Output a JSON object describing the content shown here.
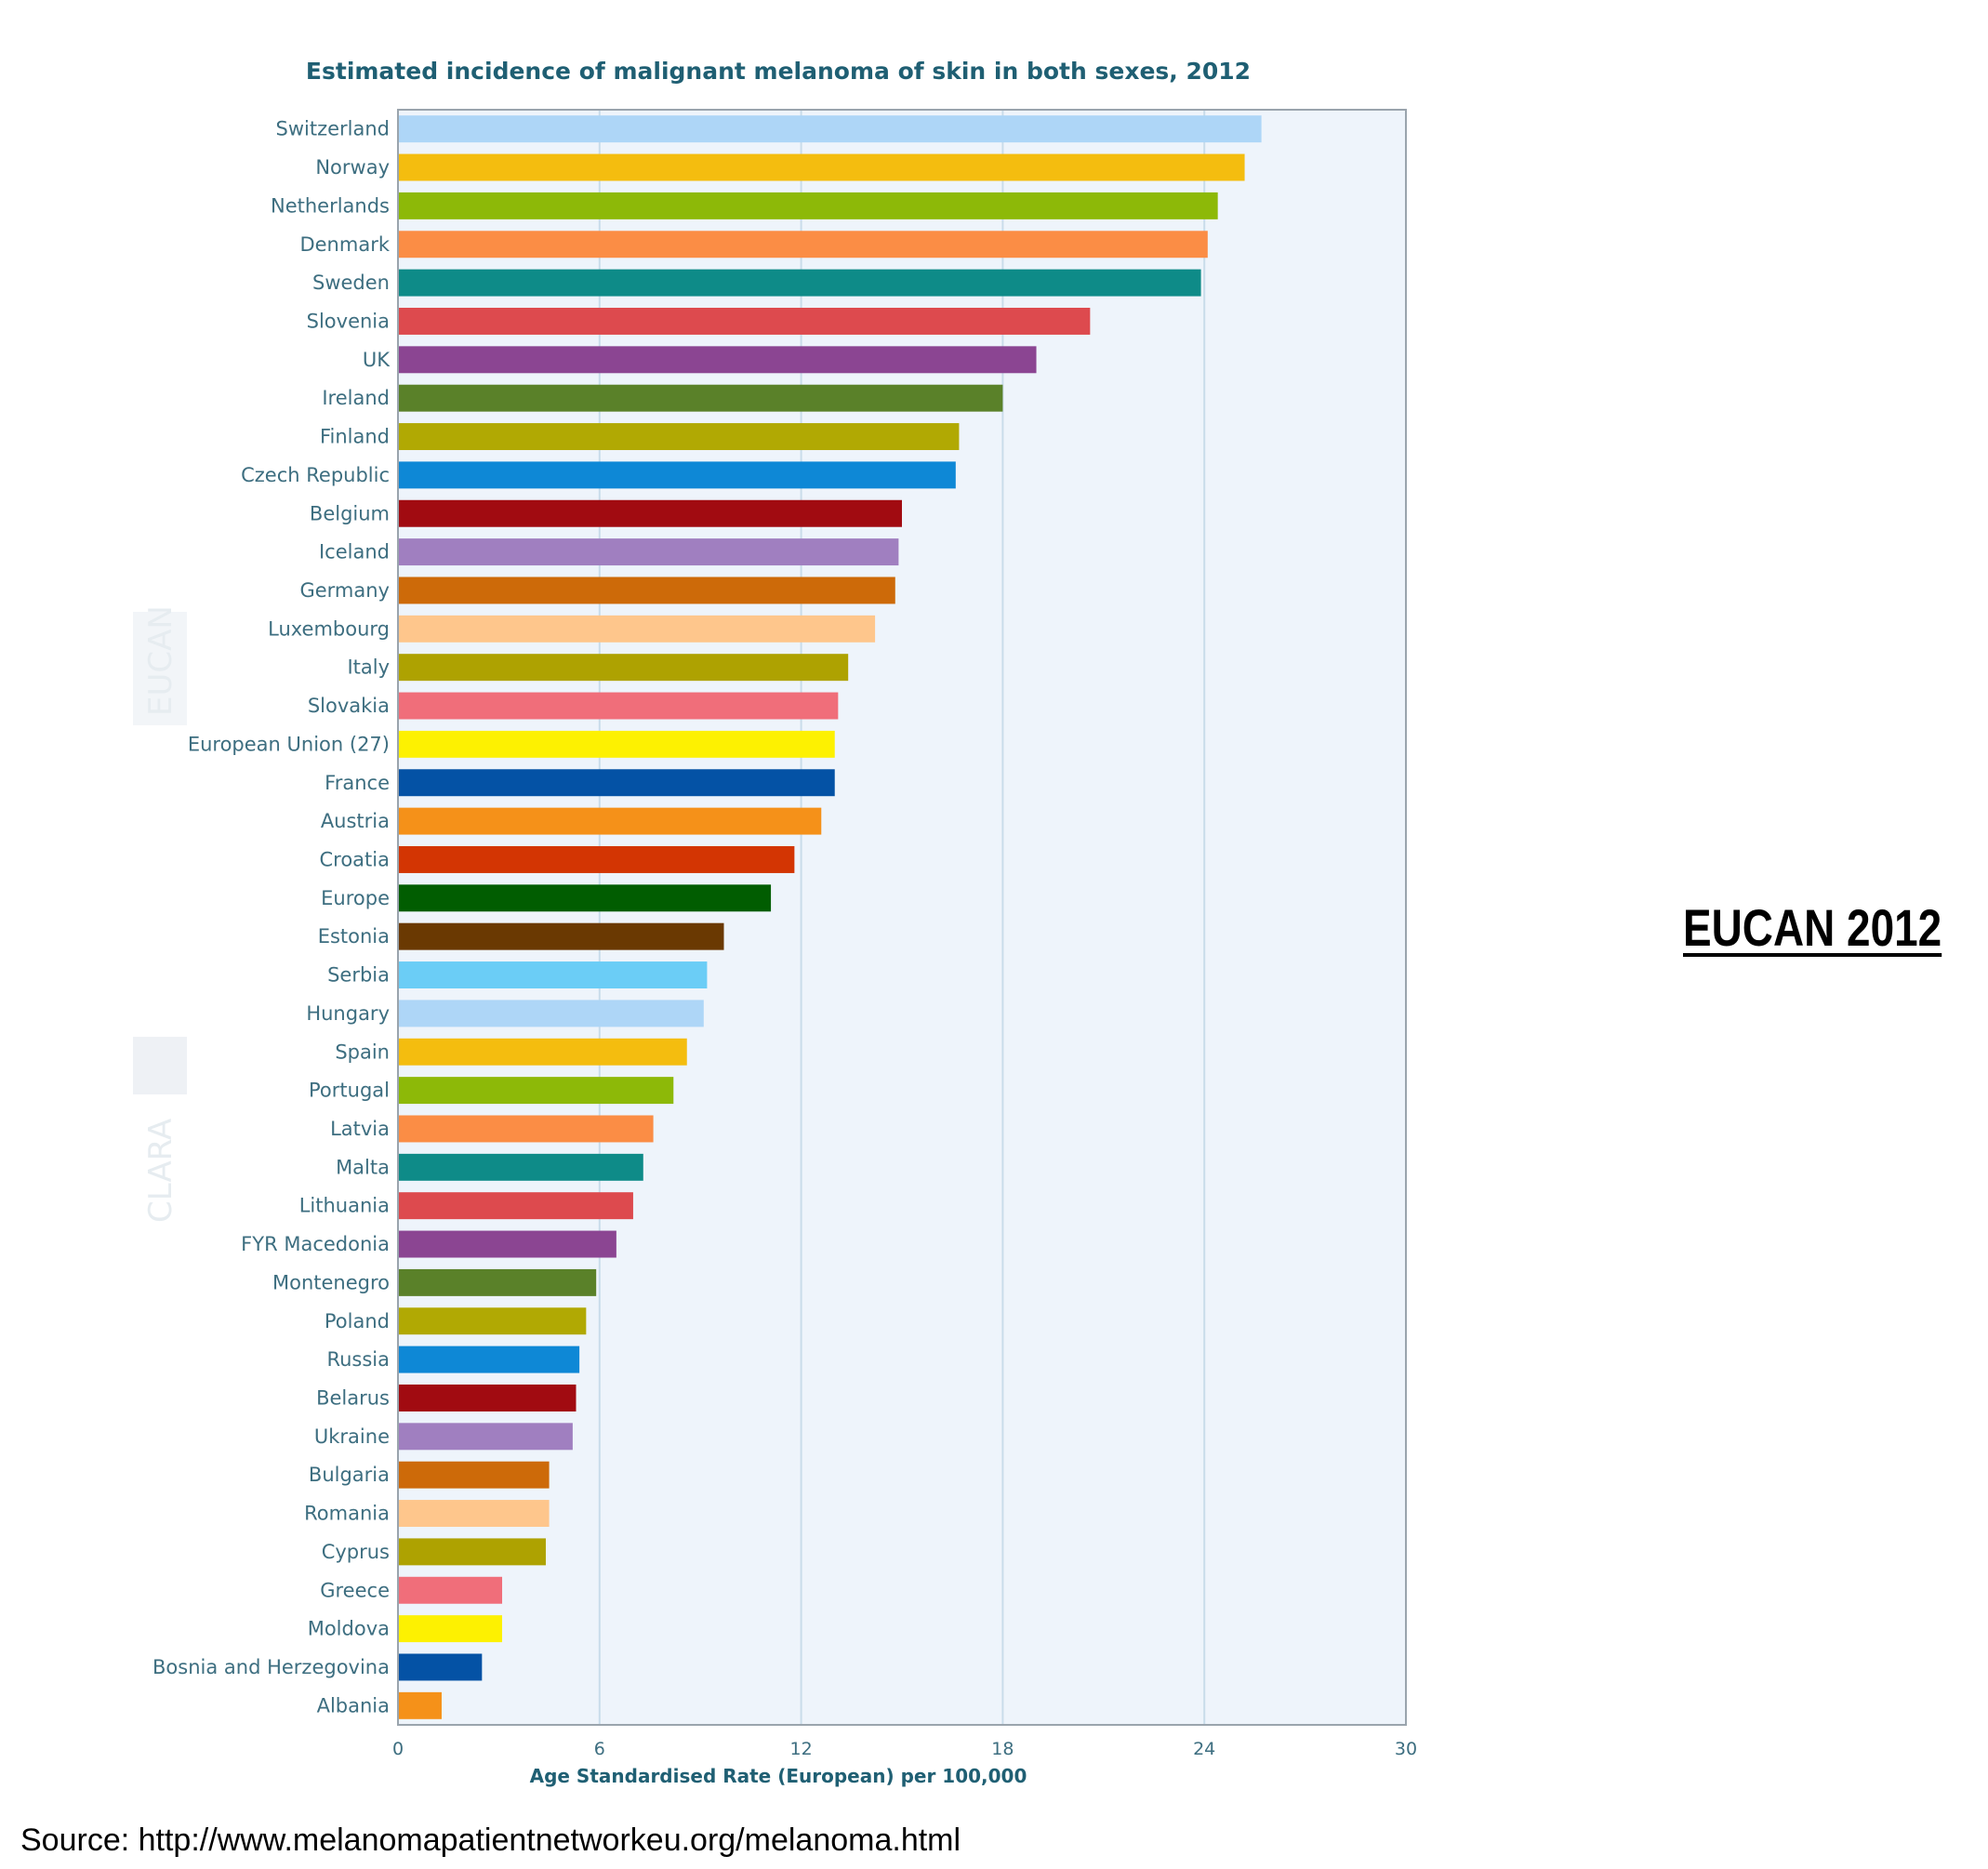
{
  "chart_data": {
    "type": "bar",
    "orientation": "horizontal",
    "title": "Estimated incidence of malignant melanoma of skin in both sexes, 2012",
    "xlabel": "Age Standardised Rate (European) per 100,000",
    "ylabel": "",
    "xlim": [
      0,
      30
    ],
    "xticks": [
      "0",
      "6",
      "12",
      "18",
      "24",
      "30"
    ],
    "grid": "vertical",
    "categories": [
      "Switzerland",
      "Norway",
      "Netherlands",
      "Denmark",
      "Sweden",
      "Slovenia",
      "UK",
      "Ireland",
      "Finland",
      "Czech Republic",
      "Belgium",
      "Iceland",
      "Germany",
      "Luxembourg",
      "Italy",
      "Slovakia",
      "European Union (27)",
      "France",
      "Austria",
      "Croatia",
      "Europe",
      "Estonia",
      "Serbia",
      "Hungary",
      "Spain",
      "Portugal",
      "Latvia",
      "Malta",
      "Lithuania",
      "FYR Macedonia",
      "Montenegro",
      "Poland",
      "Russia",
      "Belarus",
      "Ukraine",
      "Bulgaria",
      "Romania",
      "Cyprus",
      "Greece",
      "Moldova",
      "Bosnia and Herzegovina",
      "Albania"
    ],
    "values": [
      25.7,
      25.2,
      24.4,
      24.1,
      23.9,
      20.6,
      19.0,
      18.0,
      16.7,
      16.6,
      15.0,
      14.9,
      14.8,
      14.2,
      13.4,
      13.1,
      13.0,
      13.0,
      12.6,
      11.8,
      11.1,
      9.7,
      9.2,
      9.1,
      8.6,
      8.2,
      7.6,
      7.3,
      7.0,
      6.5,
      5.9,
      5.6,
      5.4,
      5.3,
      5.2,
      4.5,
      4.5,
      4.4,
      3.1,
      3.1,
      2.5,
      1.3
    ],
    "colors": [
      "#aed6f7",
      "#f4bd0f",
      "#8db908",
      "#fb8d45",
      "#0e8b88",
      "#dd4a4e",
      "#8b4592",
      "#5a8129",
      "#b1a903",
      "#0e88d6",
      "#a10b11",
      "#a07fc0",
      "#cd6a09",
      "#fec68c",
      "#aea201",
      "#f06e7a",
      "#fdf101",
      "#0452a5",
      "#f59119",
      "#d33503",
      "#015d01",
      "#6a3902",
      "#6bcdf6",
      "#aed6f7",
      "#f4bd0f",
      "#8db908",
      "#fb8d45",
      "#0e8b88",
      "#dd4a4e",
      "#8b4592",
      "#5a8129",
      "#b1a903",
      "#0e88d6",
      "#a10b11",
      "#a07fc0",
      "#cd6a09",
      "#fec68c",
      "#aea201",
      "#f06e7a",
      "#fdf101",
      "#0452a5",
      "#f59119"
    ],
    "plot_background": "#eef4fb",
    "gridline_color": "#c9dcea",
    "border_color": "#9aa4ad"
  },
  "watermark": {
    "eucan": "EUCAN",
    "clara": "CLARA"
  },
  "side_title": "EUCAN 2012",
  "source": "Source: http://www.melanomapatientnetworkeu.org/melanoma.html"
}
